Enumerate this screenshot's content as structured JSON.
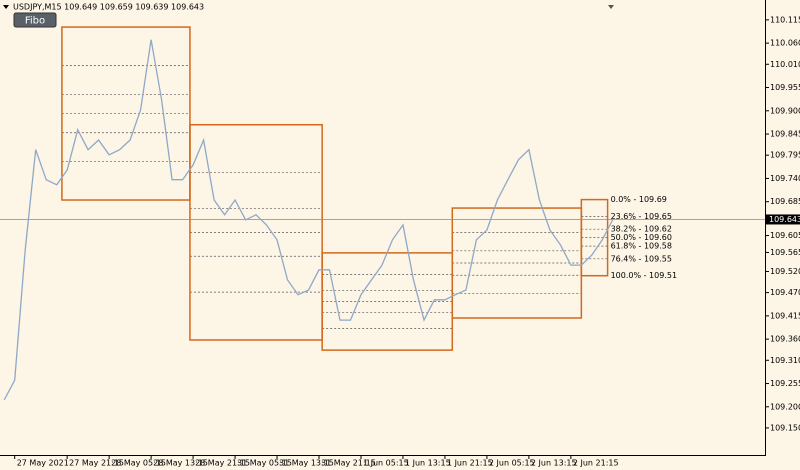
{
  "chart_data": {
    "type": "line",
    "title": "USDJPY,M15  109.649 109.659 109.639 109.643",
    "button": "Fibo",
    "color": "#8fa8c8",
    "box_color": "#d2691e",
    "level_color": "#555555",
    "values": [
      109.216,
      109.263,
      109.571,
      109.808,
      109.737,
      109.725,
      109.76,
      109.855,
      109.808,
      109.831,
      109.796,
      109.808,
      109.831,
      109.902,
      110.068,
      109.926,
      109.737,
      109.737,
      109.772,
      109.831,
      109.689,
      109.654,
      109.689,
      109.642,
      109.654,
      109.63,
      109.595,
      109.5,
      109.465,
      109.476,
      109.524,
      109.524,
      109.405,
      109.405,
      109.465,
      109.5,
      109.535,
      109.595,
      109.63,
      109.5,
      109.405,
      109.453,
      109.453,
      109.465,
      109.476,
      109.595,
      109.618,
      109.689,
      109.737,
      109.784,
      109.808,
      109.689,
      109.618,
      109.583,
      109.535,
      109.535,
      109.559,
      109.595,
      109.643
    ],
    "xlim": [
      -0.4,
      72.5
    ],
    "ylim": [
      109.086,
      110.162
    ],
    "xticks": [
      {
        "value": 1,
        "label": "27 May 2021"
      },
      {
        "value": 6,
        "label": "27 May 21:15"
      },
      {
        "value": 10,
        "label": "28 May 05:15"
      },
      {
        "value": 14,
        "label": "28 May 13:15"
      },
      {
        "value": 18,
        "label": "28 May 21:15"
      },
      {
        "value": 22,
        "label": "31 May 05:15"
      },
      {
        "value": 26,
        "label": "31 May 13:15"
      },
      {
        "value": 30,
        "label": "31 May 21:15"
      },
      {
        "value": 34,
        "label": "1 Jun 05:15"
      },
      {
        "value": 38,
        "label": "1 Jun 13:15"
      },
      {
        "value": 42,
        "label": "1 Jun 21:15"
      },
      {
        "value": 46,
        "label": "2 Jun 05:15"
      },
      {
        "value": 50,
        "label": "2 Jun 13:15"
      },
      {
        "value": 54,
        "label": "2 Jun 21:15"
      }
    ],
    "yticks": [
      110.115,
      {
        "value": 110.06,
        "label": "110.060"
      },
      {
        "value": 110.01,
        "label": "110.010"
      },
      109.955,
      {
        "value": 109.9,
        "label": "109.900"
      },
      109.845,
      109.795,
      {
        "value": 109.74,
        "label": "109.740"
      },
      109.685,
      109.605,
      109.565,
      {
        "value": 109.52,
        "label": "109.520"
      },
      {
        "value": 109.47,
        "label": "109.470"
      },
      109.415,
      {
        "value": 109.36,
        "label": "109.360"
      },
      {
        "value": 109.31,
        "label": "109.310"
      },
      109.255,
      {
        "value": 109.2,
        "label": "109.200"
      },
      {
        "value": 109.15,
        "label": "109.150"
      }
    ],
    "current_price": 109.643,
    "fibo_boxes": [
      {
        "x0": 5.5,
        "x1": 17.7,
        "high": 110.098,
        "low": 109.689
      },
      {
        "x0": 17.7,
        "x1": 30.3,
        "high": 109.867,
        "low": 109.358
      },
      {
        "x0": 30.3,
        "x1": 42.7,
        "high": 109.564,
        "low": 109.334
      },
      {
        "x0": 42.7,
        "x1": 55,
        "high": 109.67,
        "low": 109.41
      },
      {
        "x0": 55,
        "x1": 57.5,
        "high": 109.69,
        "low": 109.51
      }
    ],
    "fibo_levels": [
      {
        "label": "0.0% - 109.69",
        "value": 109.69
      },
      {
        "label": "23.6% - 109.65",
        "value": 109.65
      },
      {
        "label": "38.2% - 109.62",
        "value": 109.62
      },
      {
        "label": "50.0% - 109.60",
        "value": 109.6
      },
      {
        "label": "61.8% - 109.58",
        "value": 109.58
      },
      {
        "label": "76.4% - 109.55",
        "value": 109.55
      },
      {
        "label": "100.0% - 109.51",
        "value": 109.51
      }
    ]
  }
}
